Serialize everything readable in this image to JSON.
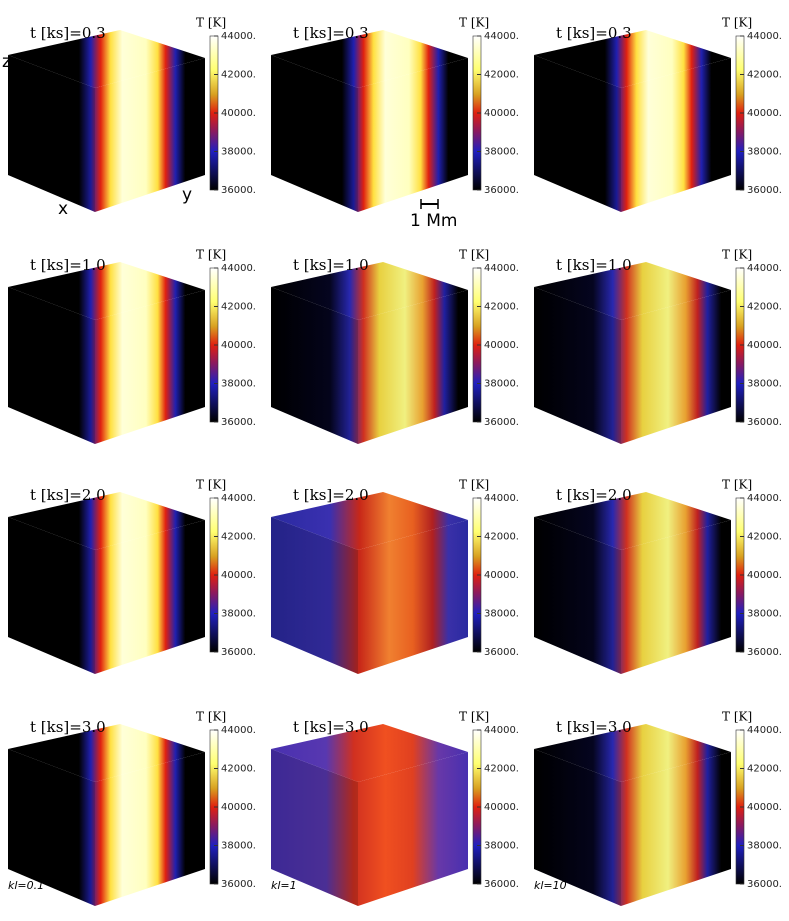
{
  "rows": [
    {
      "title": "t [ks]=0.3"
    },
    {
      "title": "t [ks]=1.0"
    },
    {
      "title": "t [ks]=2.0"
    },
    {
      "title": "t [ks]=3.0"
    }
  ],
  "columns": [
    {
      "label": "kl=0.1"
    },
    {
      "label": "kl=1"
    },
    {
      "label": "kl=10"
    }
  ],
  "colorbar": {
    "label": "T [K]",
    "lim": [
      36000,
      44000
    ],
    "ticks": [
      {
        "value": 44000,
        "label": "44000."
      },
      {
        "value": 42000,
        "label": "42000."
      },
      {
        "value": 40000,
        "label": "40000."
      },
      {
        "value": 38000,
        "label": "38000."
      },
      {
        "value": 36000,
        "label": "36000."
      }
    ]
  },
  "axes": {
    "z": "z",
    "x": "x",
    "y": "y"
  },
  "scale_bar": "1 Mm"
}
